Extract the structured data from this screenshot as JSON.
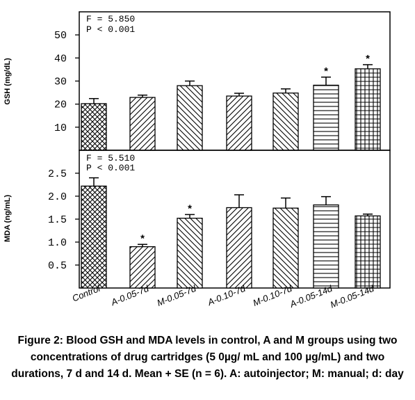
{
  "chart_data": [
    {
      "type": "bar",
      "panel": "top",
      "ylabel": "GSH (mg/dL)",
      "stat_line1": "F = 5.850",
      "stat_line2": "P < 0.001",
      "ylim": [
        0,
        60
      ],
      "yticks": [
        "10",
        "20",
        "30",
        "40",
        "50"
      ],
      "categories": [
        "Control",
        "A-0.05-7d",
        "M-0.05-7d",
        "A-0.10-7d",
        "M-0.10-7d",
        "A-0.05-14d",
        "M-0.05-14d"
      ],
      "values": [
        20.2,
        22.9,
        28.0,
        23.5,
        24.8,
        28.2,
        35.3
      ],
      "errors": [
        2.2,
        1.0,
        2.0,
        1.2,
        1.8,
        3.5,
        1.8
      ],
      "significant": [
        false,
        false,
        false,
        false,
        false,
        true,
        true
      ]
    },
    {
      "type": "bar",
      "panel": "bottom",
      "ylabel": "MDA (ng/mL)",
      "stat_line1": "F = 5.510",
      "stat_line2": "P < 0.001",
      "ylim": [
        0,
        3.0
      ],
      "yticks": [
        "0.5",
        "1.0",
        "1.5",
        "2.0",
        "2.5"
      ],
      "categories": [
        "Control",
        "A-0.05-7d",
        "M-0.05-7d",
        "A-0.10-7d",
        "M-0.10-7d",
        "A-0.05-14d",
        "M-0.05-14d"
      ],
      "values": [
        2.22,
        0.9,
        1.52,
        1.75,
        1.74,
        1.81,
        1.57
      ],
      "errors": [
        0.18,
        0.05,
        0.08,
        0.28,
        0.22,
        0.18,
        0.04
      ],
      "significant": [
        false,
        true,
        true,
        false,
        false,
        false,
        false
      ]
    }
  ],
  "xtick_labels": [
    "Control",
    "A-0.05-7d",
    "M-0.05-7d",
    "A-0.10-7d",
    "M-0.10-7d",
    "A-0.05-14d",
    "M-0.05-14d"
  ],
  "caption": {
    "line1": "Figure 2: Blood GSH and MDA levels in control, A and M groups using two",
    "line2": "concentrations of drug cartridges (5 0µg/ mL and 100 µg/mL) and two",
    "line3": "durations, 7 d and 14 d. Mean + SE (n = 6).  A: autoinjector; M: manual; d: day"
  },
  "significance_marker": "*"
}
